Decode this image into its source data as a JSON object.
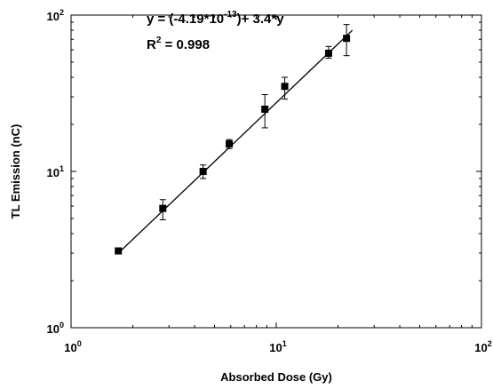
{
  "chart_data": {
    "type": "scatter",
    "xlabel": "Absorbed Dose (Gy)",
    "ylabel": "TL Emission (nC)",
    "xscale": "log",
    "yscale": "log",
    "xlim": [
      1,
      100
    ],
    "ylim": [
      1,
      100
    ],
    "grid": false,
    "legend": "none",
    "x_ticks": [
      {
        "base": "10",
        "exp": "0",
        "value": 1
      },
      {
        "base": "10",
        "exp": "1",
        "value": 10
      },
      {
        "base": "10",
        "exp": "2",
        "value": 100
      }
    ],
    "y_ticks": [
      {
        "base": "10",
        "exp": "0",
        "value": 1
      },
      {
        "base": "10",
        "exp": "1",
        "value": 10
      },
      {
        "base": "10",
        "exp": "2",
        "value": 100
      }
    ],
    "points": [
      {
        "x": 1.7,
        "y": 3.1,
        "err_low": 0.1,
        "err_high": 0.1
      },
      {
        "x": 2.8,
        "y": 5.8,
        "err_low": 0.9,
        "err_high": 0.8
      },
      {
        "x": 4.4,
        "y": 10.0,
        "err_low": 1.0,
        "err_high": 1.0
      },
      {
        "x": 5.9,
        "y": 15.0,
        "err_low": 1.0,
        "err_high": 1.0
      },
      {
        "x": 8.8,
        "y": 25.0,
        "err_low": 6.0,
        "err_high": 6.0
      },
      {
        "x": 11.0,
        "y": 35.0,
        "err_low": 6.0,
        "err_high": 5.0
      },
      {
        "x": 18.0,
        "y": 57.0,
        "err_low": 4.0,
        "err_high": 6.0
      },
      {
        "x": 22.0,
        "y": 71.0,
        "err_low": 16.0,
        "err_high": 16.0
      }
    ],
    "fit_line": {
      "x": [
        1.7,
        23.5
      ],
      "y": [
        3.0,
        80.0
      ]
    },
    "annotation": {
      "line1_prefix": "y = (-4.19*10",
      "line1_exp": "-13",
      "line1_suffix": ")+ 3.4*y",
      "line2_prefix": "R",
      "line2_exp": "2",
      "line2_suffix": " = 0.998"
    }
  }
}
